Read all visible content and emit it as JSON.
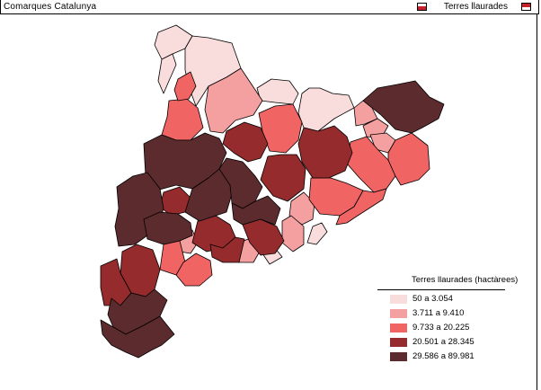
{
  "window": {
    "title": "Comarques Catalunya",
    "layer_name": "Terres llaurades"
  },
  "legend": {
    "title": "Terres llaurades (hactàrees)",
    "classes": [
      {
        "label": "50 a 3.054",
        "color": "#f9dcdc"
      },
      {
        "label": "3.711 a 9.410",
        "color": "#f4a0a0"
      },
      {
        "label": "9.733 a 20.225",
        "color": "#f06464"
      },
      {
        "label": "20.501 a 28.345",
        "color": "#952b2d"
      },
      {
        "label": "29.586 a 89.981",
        "color": "#5c2b2e"
      }
    ]
  },
  "map": {
    "region": "Catalunya",
    "comarques_count": 41
  }
}
